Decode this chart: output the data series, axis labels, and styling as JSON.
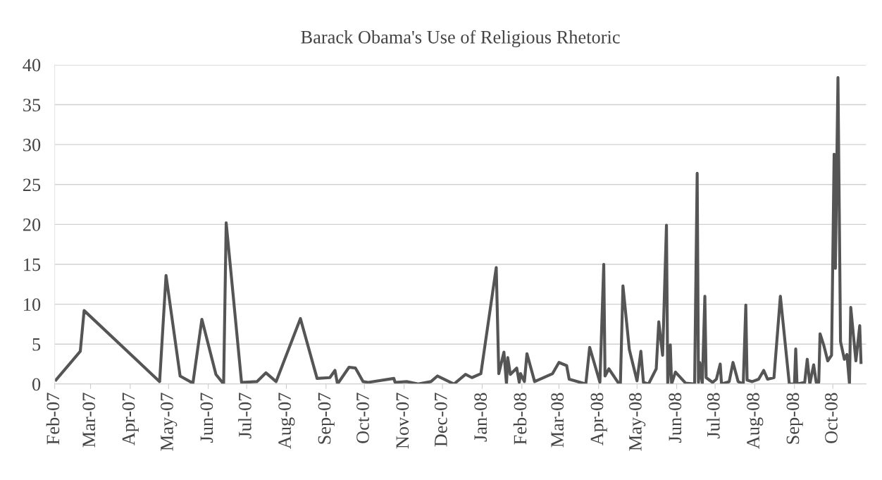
{
  "chart_data": {
    "type": "line",
    "title": "Barack Obama's Use of Religious Rhetoric",
    "x": [
      "2007-02-02",
      "2007-02-21",
      "2007-02-24",
      "2007-04-24",
      "2007-04-29",
      "2007-05-10",
      "2007-05-20",
      "2007-05-27",
      "2007-06-07",
      "2007-06-13",
      "2007-06-15",
      "2007-06-27",
      "2007-07-09",
      "2007-07-16",
      "2007-07-24",
      "2007-08-12",
      "2007-08-25",
      "2007-09-04",
      "2007-09-08",
      "2007-09-10",
      "2007-09-19",
      "2007-09-24",
      "2007-09-30",
      "2007-10-04",
      "2007-10-24",
      "2007-10-25",
      "2007-11-03",
      "2007-11-12",
      "2007-11-22",
      "2007-11-27",
      "2007-12-10",
      "2007-12-19",
      "2007-12-24",
      "2007-12-31",
      "2008-01-12",
      "2008-01-14",
      "2008-01-18",
      "2008-01-20",
      "2008-01-21",
      "2008-01-23",
      "2008-01-28",
      "2008-01-30",
      "2008-01-31",
      "2008-02-03",
      "2008-02-05",
      "2008-02-11",
      "2008-02-25",
      "2008-03-01",
      "2008-03-07",
      "2008-03-09",
      "2008-03-22",
      "2008-03-25",
      "2008-04-02",
      "2008-04-05",
      "2008-04-06",
      "2008-04-09",
      "2008-04-17",
      "2008-04-18",
      "2008-04-20",
      "2008-04-25",
      "2008-05-01",
      "2008-05-04",
      "2008-05-06",
      "2008-05-10",
      "2008-05-16",
      "2008-05-18",
      "2008-05-21",
      "2008-05-24",
      "2008-05-25",
      "2008-05-27",
      "2008-05-28",
      "2008-05-31",
      "2008-06-08",
      "2008-06-15",
      "2008-06-17",
      "2008-06-18",
      "2008-06-19",
      "2008-06-21",
      "2008-06-23",
      "2008-06-24",
      "2008-06-29",
      "2008-07-02",
      "2008-07-05",
      "2008-07-06",
      "2008-07-12",
      "2008-07-15",
      "2008-07-19",
      "2008-07-23",
      "2008-07-25",
      "2008-07-26",
      "2008-07-30",
      "2008-08-04",
      "2008-08-08",
      "2008-08-11",
      "2008-08-16",
      "2008-08-21",
      "2008-08-28",
      "2008-09-01",
      "2008-09-02",
      "2008-09-03",
      "2008-09-09",
      "2008-09-11",
      "2008-09-13",
      "2008-09-16",
      "2008-09-18",
      "2008-09-20",
      "2008-09-21",
      "2008-09-24",
      "2008-09-27",
      "2008-09-30",
      "2008-10-02",
      "2008-10-03",
      "2008-10-05",
      "2008-10-07",
      "2008-10-10",
      "2008-10-12",
      "2008-10-14",
      "2008-10-15",
      "2008-10-19",
      "2008-10-22",
      "2008-10-23"
    ],
    "series": [
      {
        "color": "#555555",
        "values": [
          0.5,
          4.1,
          9.2,
          0.3,
          13.6,
          1.0,
          0.1,
          8.1,
          1.2,
          0,
          20.2,
          0.2,
          0.3,
          1.4,
          0.3,
          8.2,
          0.7,
          0.8,
          1.7,
          0,
          2.1,
          2.0,
          0.3,
          0.2,
          0.7,
          0.2,
          0.3,
          0,
          0.3,
          1.0,
          0,
          1.2,
          0.8,
          1.3,
          14.6,
          1.3,
          4.0,
          0,
          3.3,
          1.2,
          2.0,
          0.2,
          1.3,
          0.3,
          3.8,
          0.3,
          1.3,
          2.7,
          2.3,
          0.6,
          0,
          4.6,
          0.2,
          15.0,
          1.0,
          1.9,
          0,
          0,
          12.3,
          4.3,
          0.4,
          4.1,
          0.2,
          0,
          1.9,
          7.8,
          3.6,
          19.9,
          0,
          4.9,
          0,
          1.5,
          0.1,
          0,
          26.4,
          0.2,
          2.7,
          0,
          11.0,
          0.8,
          0.2,
          0.6,
          2.5,
          0,
          0.3,
          2.7,
          0.3,
          0,
          9.9,
          0.5,
          0.3,
          0.6,
          1.7,
          0.6,
          0.8,
          11.0,
          0,
          0,
          4.4,
          0,
          0.2,
          3.1,
          0,
          2.4,
          0.2,
          0.2,
          6.3,
          4.8,
          2.9,
          3.6,
          28.8,
          14.5,
          38.4,
          5.3,
          3.1,
          3.7,
          0,
          9.6,
          2.9,
          7.3,
          2.7
        ]
      }
    ],
    "xlim": [
      "2007-02-01",
      "2008-10-27"
    ],
    "xticks": [
      {
        "value": "2007-02-01",
        "label": "Feb-07"
      },
      {
        "value": "2007-03-01",
        "label": "Mar-07"
      },
      {
        "value": "2007-04-01",
        "label": "Apr-07"
      },
      {
        "value": "2007-05-01",
        "label": "May-07"
      },
      {
        "value": "2007-06-01",
        "label": "Jun-07"
      },
      {
        "value": "2007-07-01",
        "label": "Jul-07"
      },
      {
        "value": "2007-08-01",
        "label": "Aug-07"
      },
      {
        "value": "2007-09-01",
        "label": "Sep-07"
      },
      {
        "value": "2007-10-01",
        "label": "Oct-07"
      },
      {
        "value": "2007-11-01",
        "label": "Nov-07"
      },
      {
        "value": "2007-12-01",
        "label": "Dec-07"
      },
      {
        "value": "2008-01-01",
        "label": "Jan-08"
      },
      {
        "value": "2008-02-01",
        "label": "Feb-08"
      },
      {
        "value": "2008-03-01",
        "label": "Mar-08"
      },
      {
        "value": "2008-04-01",
        "label": "Apr-08"
      },
      {
        "value": "2008-05-01",
        "label": "May-08"
      },
      {
        "value": "2008-06-01",
        "label": "Jun-08"
      },
      {
        "value": "2008-07-01",
        "label": "Jul-08"
      },
      {
        "value": "2008-08-01",
        "label": "Aug-08"
      },
      {
        "value": "2008-09-01",
        "label": "Sep-08"
      },
      {
        "value": "2008-10-01",
        "label": "Oct-08"
      }
    ],
    "ylim": [
      0,
      40
    ],
    "yticks": [
      0,
      5,
      10,
      15,
      20,
      25,
      30,
      35,
      40
    ],
    "grid": "y",
    "legend": false,
    "marker": "none",
    "line_style": "solid"
  }
}
